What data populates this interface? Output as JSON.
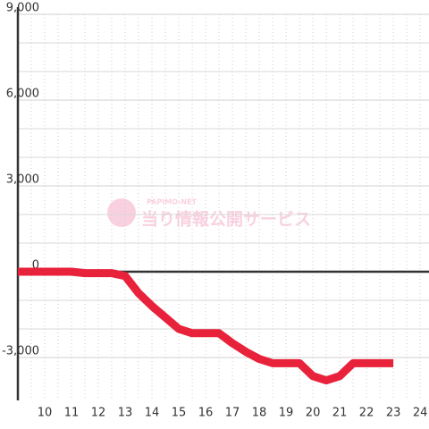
{
  "chart_data": {
    "type": "line",
    "watermark_brand": "PAPIMO-NET",
    "watermark_text": "当り情報公開サービス",
    "x": [
      9,
      11,
      11.5,
      12.5,
      13,
      13.5,
      14,
      14.5,
      15,
      15.5,
      16.5,
      17,
      17.5,
      18,
      18.5,
      19.5,
      20,
      20.5,
      21,
      21.5,
      23
    ],
    "series": [
      {
        "color": "#e8223a",
        "values": [
          0,
          0,
          -50,
          -50,
          -150,
          -750,
          -1200,
          -1600,
          -2000,
          -2150,
          -2150,
          -2500,
          -2800,
          -3050,
          -3200,
          -3200,
          -3650,
          -3800,
          -3650,
          -3200,
          -3200
        ]
      }
    ],
    "xlim": [
      9,
      24.33
    ],
    "xticks": [
      10,
      11,
      12,
      13,
      14,
      15,
      16,
      17,
      18,
      19,
      20,
      21,
      22,
      23,
      24
    ],
    "ylim": [
      -4500,
      9000
    ],
    "yticks": [
      {
        "value": -3000,
        "label": "-3,000"
      },
      0,
      {
        "value": 3000,
        "label": "3,000"
      },
      {
        "value": 6000,
        "label": "6,000"
      },
      {
        "value": 9000,
        "label": "9,000"
      }
    ],
    "grid": true
  }
}
